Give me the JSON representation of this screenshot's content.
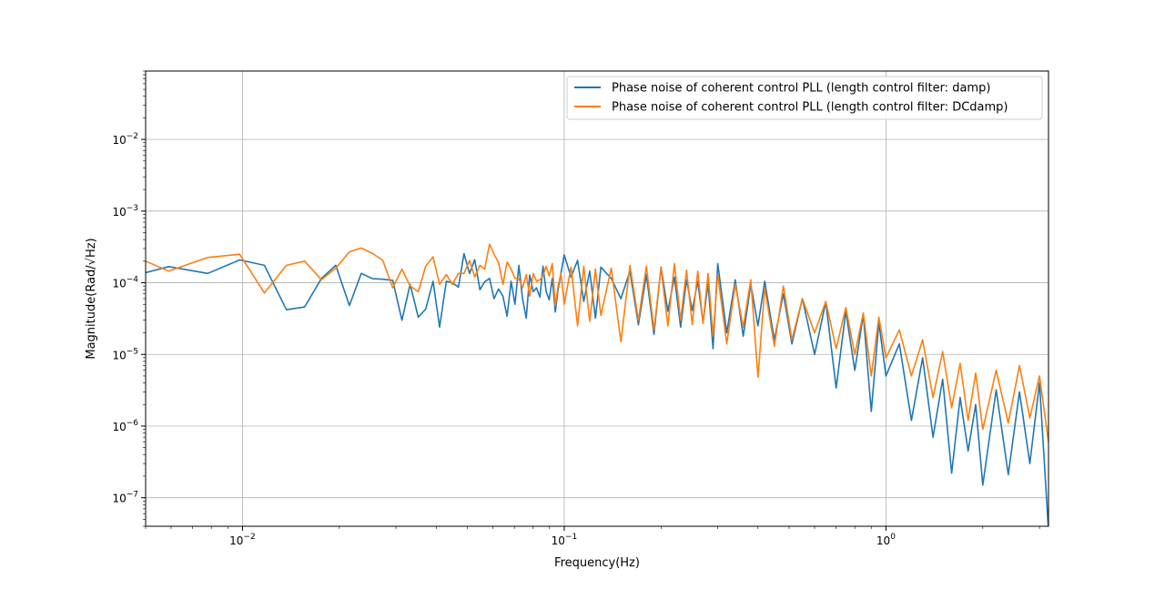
{
  "chart_data": {
    "type": "line",
    "title": "",
    "xlabel": "Frequency(Hz)",
    "ylabel": "Magnitude(Rad/√Hz)",
    "x_scale": "log",
    "y_scale": "log",
    "xlim": [
      0.005,
      3.2
    ],
    "ylim": [
      4e-08,
      0.09
    ],
    "grid": true,
    "legend_position": "top-right",
    "x_ticks": [
      {
        "value": 0.01,
        "base": "10",
        "exp": "−2"
      },
      {
        "value": 0.1,
        "base": "10",
        "exp": "−1"
      },
      {
        "value": 1,
        "base": "10",
        "exp": "0"
      }
    ],
    "y_ticks": [
      {
        "value": 1e-07,
        "base": "10",
        "exp": "−7"
      },
      {
        "value": 1e-06,
        "base": "10",
        "exp": "−6"
      },
      {
        "value": 1e-05,
        "base": "10",
        "exp": "−5"
      },
      {
        "value": 0.0001,
        "base": "10",
        "exp": "−4"
      },
      {
        "value": 0.001,
        "base": "10",
        "exp": "−3"
      },
      {
        "value": 0.01,
        "base": "10",
        "exp": "−2"
      }
    ],
    "series": [
      {
        "name": "Phase noise of coherent control PLL (length control filter: damp)",
        "color": "#1f77b4",
        "x": [
          0.005,
          0.0059,
          0.0078,
          0.0098,
          0.0117,
          0.0137,
          0.0156,
          0.0176,
          0.0195,
          0.0215,
          0.0234,
          0.0254,
          0.0273,
          0.0293,
          0.0313,
          0.0332,
          0.0352,
          0.0371,
          0.0391,
          0.041,
          0.043,
          0.0449,
          0.0469,
          0.0488,
          0.0508,
          0.0527,
          0.0547,
          0.0566,
          0.0586,
          0.0605,
          0.0625,
          0.0645,
          0.0664,
          0.0684,
          0.0703,
          0.0723,
          0.0742,
          0.0762,
          0.0781,
          0.0801,
          0.082,
          0.084,
          0.0859,
          0.0879,
          0.0898,
          0.0918,
          0.0938,
          0.0957,
          0.0977,
          0.1,
          0.105,
          0.11,
          0.115,
          0.12,
          0.125,
          0.13,
          0.14,
          0.15,
          0.16,
          0.17,
          0.18,
          0.19,
          0.2,
          0.21,
          0.22,
          0.23,
          0.24,
          0.25,
          0.26,
          0.27,
          0.28,
          0.29,
          0.3,
          0.32,
          0.34,
          0.36,
          0.38,
          0.4,
          0.42,
          0.45,
          0.48,
          0.51,
          0.55,
          0.6,
          0.65,
          0.7,
          0.75,
          0.8,
          0.85,
          0.9,
          0.95,
          1.0,
          1.1,
          1.2,
          1.3,
          1.4,
          1.5,
          1.6,
          1.7,
          1.8,
          1.9,
          2.0,
          2.2,
          2.4,
          2.6,
          2.8,
          3.0,
          3.2
        ],
        "y": [
          0.000138,
          0.000168,
          0.000135,
          0.000208,
          0.000175,
          4.2e-05,
          4.6e-05,
          0.000115,
          0.000175,
          4.8e-05,
          0.000135,
          0.000114,
          0.000112,
          0.000108,
          3e-05,
          9.5e-05,
          3.3e-05,
          4.3e-05,
          0.000105,
          2.4e-05,
          0.000105,
          0.0001,
          8.7e-05,
          0.000255,
          0.000135,
          0.00021,
          8e-05,
          0.000103,
          0.000115,
          6e-05,
          8.2e-05,
          6.5e-05,
          3.4e-05,
          0.000105,
          5e-05,
          0.000175,
          6e-05,
          3.2e-05,
          0.000128,
          7.5e-05,
          8.5e-05,
          6.3e-05,
          0.00017,
          7.5e-05,
          5.8e-05,
          0.000115,
          3.9e-05,
          8e-05,
          0.000135,
          0.000245,
          0.00012,
          0.000205,
          5.5e-05,
          0.000145,
          3.2e-05,
          0.000165,
          0.000115,
          6e-05,
          0.000145,
          2.6e-05,
          0.00013,
          1.9e-05,
          0.000165,
          4e-05,
          0.00012,
          2.4e-05,
          0.00011,
          4.1e-05,
          0.000105,
          2.8e-05,
          9.8e-05,
          1.2e-05,
          0.000185,
          2e-05,
          0.00011,
          1.8e-05,
          9.5e-05,
          2.5e-05,
          0.000105,
          1.6e-05,
          7e-05,
          1.4e-05,
          6e-05,
          1e-05,
          5.4e-05,
          3.4e-06,
          4e-05,
          6e-06,
          3.6e-05,
          1.6e-06,
          2.8e-05,
          5e-06,
          1.4e-05,
          1.2e-06,
          9e-06,
          7e-07,
          4.5e-06,
          2.2e-07,
          2.5e-06,
          4.5e-07,
          2e-06,
          1.5e-07,
          3.2e-06,
          2.1e-07,
          3e-06,
          3e-07,
          4e-06,
          3.5e-08
        ]
      },
      {
        "name": "Phase noise of coherent control PLL (length control filter: DCdamp)",
        "color": "#ff7f0e",
        "x": [
          0.005,
          0.0059,
          0.0078,
          0.0098,
          0.0117,
          0.0137,
          0.0156,
          0.0176,
          0.0195,
          0.0215,
          0.0234,
          0.0254,
          0.0273,
          0.0293,
          0.0313,
          0.0332,
          0.0352,
          0.0371,
          0.0391,
          0.041,
          0.043,
          0.0449,
          0.0469,
          0.0488,
          0.0508,
          0.0527,
          0.0547,
          0.0566,
          0.0586,
          0.0605,
          0.0625,
          0.0645,
          0.0664,
          0.0684,
          0.0703,
          0.0723,
          0.0742,
          0.0762,
          0.0781,
          0.0801,
          0.082,
          0.084,
          0.0859,
          0.0879,
          0.0898,
          0.0918,
          0.0938,
          0.0957,
          0.0977,
          0.1,
          0.105,
          0.11,
          0.115,
          0.12,
          0.125,
          0.13,
          0.14,
          0.15,
          0.16,
          0.17,
          0.18,
          0.19,
          0.2,
          0.21,
          0.22,
          0.23,
          0.24,
          0.25,
          0.26,
          0.27,
          0.28,
          0.29,
          0.3,
          0.32,
          0.34,
          0.36,
          0.38,
          0.4,
          0.42,
          0.45,
          0.48,
          0.51,
          0.55,
          0.6,
          0.65,
          0.7,
          0.75,
          0.8,
          0.85,
          0.9,
          0.95,
          1.0,
          1.1,
          1.2,
          1.3,
          1.4,
          1.5,
          1.6,
          1.7,
          1.8,
          1.9,
          2.0,
          2.2,
          2.4,
          2.6,
          2.8,
          3.0,
          3.2
        ],
        "y": [
          0.0002,
          0.000145,
          0.000225,
          0.00025,
          7.2e-05,
          0.000175,
          0.0002,
          0.00011,
          0.00016,
          0.00027,
          0.000305,
          0.000255,
          0.000205,
          8.5e-05,
          0.000155,
          9e-05,
          7.5e-05,
          0.00017,
          0.00023,
          9.5e-05,
          0.00013,
          9.5e-05,
          0.000135,
          0.000135,
          0.000205,
          0.00012,
          0.000175,
          0.000155,
          0.000345,
          0.00025,
          0.00019,
          9.5e-05,
          0.000195,
          0.000155,
          0.000115,
          0.000115,
          8.5e-05,
          0.00013,
          6.5e-05,
          0.000135,
          0.000105,
          0.00011,
          0.000125,
          0.00017,
          0.000125,
          0.000185,
          4.8e-05,
          9e-05,
          0.000135,
          5e-05,
          0.000165,
          2.5e-05,
          0.00017,
          2.9e-05,
          0.000155,
          3.5e-05,
          0.00016,
          1.5e-05,
          0.000175,
          3e-05,
          0.00017,
          2.2e-05,
          0.00016,
          2.5e-05,
          0.000185,
          3e-05,
          0.00015,
          2.6e-05,
          0.000145,
          2.7e-05,
          0.000135,
          1.8e-05,
          0.00013,
          1.4e-05,
          9.5e-05,
          2.4e-05,
          0.00011,
          4.8e-06,
          8.5e-05,
          1.3e-05,
          9e-05,
          1.6e-05,
          6e-05,
          2e-05,
          5.5e-05,
          1.2e-05,
          4.5e-05,
          1e-05,
          3.8e-05,
          5e-06,
          3.3e-05,
          9e-06,
          2.2e-05,
          5e-06,
          1.6e-05,
          2.5e-06,
          1.1e-05,
          1.8e-06,
          7.5e-06,
          1.2e-06,
          5.5e-06,
          9e-07,
          6e-06,
          1.1e-06,
          7e-06,
          1.3e-06,
          5e-06,
          6e-07
        ]
      }
    ]
  }
}
